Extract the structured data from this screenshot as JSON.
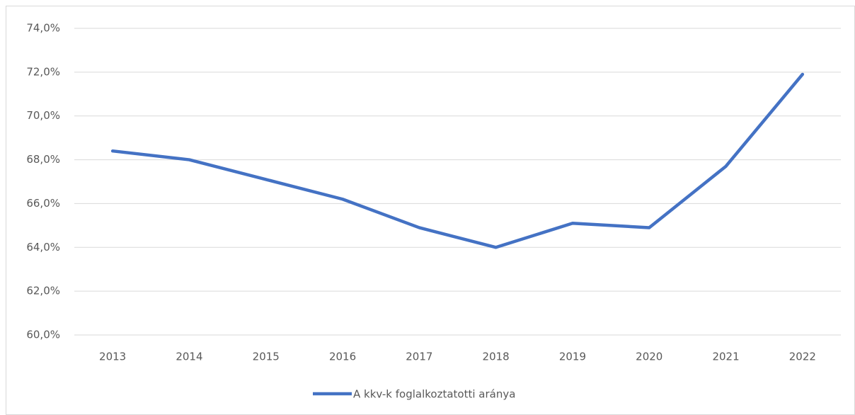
{
  "chart_data": {
    "type": "line",
    "categories": [
      "2013",
      "2014",
      "2015",
      "2016",
      "2017",
      "2018",
      "2019",
      "2020",
      "2021",
      "2022"
    ],
    "series": [
      {
        "name": "A kkv-k foglalkoztatotti aránya",
        "color": "#4472c4",
        "values": [
          68.4,
          68.0,
          67.1,
          66.2,
          64.9,
          64.0,
          65.1,
          64.9,
          67.7,
          71.9
        ]
      }
    ],
    "ylim": [
      60,
      74
    ],
    "yticks": [
      {
        "value": 60,
        "label": "60,0%"
      },
      {
        "value": 62,
        "label": "62,0%"
      },
      {
        "value": 64,
        "label": "64,0%"
      },
      {
        "value": 66,
        "label": "66,0%"
      },
      {
        "value": 68,
        "label": "68,0%"
      },
      {
        "value": 70,
        "label": "70,0%"
      },
      {
        "value": 72,
        "label": "72,0%"
      },
      {
        "value": 74,
        "label": "74,0%"
      }
    ],
    "grid": true,
    "legend": "bottom"
  }
}
